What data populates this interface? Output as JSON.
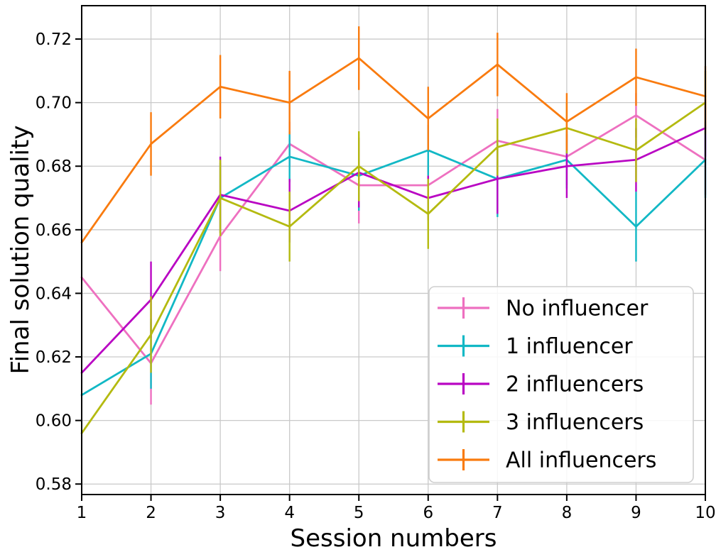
{
  "figure": {
    "xlabel": "Session numbers",
    "ylabel": "Final solution quality"
  },
  "chart_data": {
    "type": "line",
    "subtype": "errorbar",
    "title": "",
    "xlabel": "Session numbers",
    "ylabel": "Final solution quality",
    "x": [
      1,
      2,
      3,
      4,
      5,
      6,
      7,
      8,
      9,
      10
    ],
    "x_tick_labels": [
      "1",
      "2",
      "3",
      "4",
      "5",
      "6",
      "7",
      "8",
      "9",
      "10"
    ],
    "y_ticks": [
      0.58,
      0.6,
      0.62,
      0.64,
      0.66,
      0.68,
      0.7,
      0.72
    ],
    "y_tick_labels": [
      "0.58",
      "0.60",
      "0.62",
      "0.64",
      "0.66",
      "0.68",
      "0.70",
      "0.72"
    ],
    "xlim": [
      1,
      10
    ],
    "ylim": [
      0.5767,
      0.7305
    ],
    "grid": true,
    "grid_color": "#c9c9c9",
    "spine_color": "#000000",
    "legend_position": "lower right",
    "series": [
      {
        "name": "No influencer",
        "color": "#ee70c0",
        "values": [
          0.645,
          0.618,
          0.658,
          0.687,
          0.674,
          0.674,
          0.688,
          0.683,
          0.696,
          0.682
        ],
        "errors": [
          0,
          0.013,
          0.011,
          0.007,
          0.012,
          0.008,
          0.01,
          0.009,
          0.007,
          0.011
        ]
      },
      {
        "name": "1 influencer",
        "color": "#12b8c5",
        "values": [
          0.608,
          0.621,
          0.67,
          0.683,
          0.677,
          0.685,
          0.676,
          0.682,
          0.661,
          0.682
        ],
        "errors": [
          0,
          0.011,
          0.011,
          0.008,
          0.011,
          0.008,
          0.012,
          0.009,
          0.011,
          0.012
        ]
      },
      {
        "name": "2 influencers",
        "color": "#b906c3",
        "values": [
          0.615,
          0.638,
          0.671,
          0.666,
          0.678,
          0.67,
          0.676,
          0.68,
          0.682,
          0.692
        ],
        "errors": [
          0,
          0.012,
          0.012,
          0.01,
          0.011,
          0.007,
          0.011,
          0.01,
          0.01,
          0.009
        ]
      },
      {
        "name": "3 influencers",
        "color": "#b4ba10",
        "values": [
          0.596,
          0.627,
          0.67,
          0.661,
          0.68,
          0.665,
          0.686,
          0.692,
          0.685,
          0.7
        ],
        "errors": [
          0,
          0.012,
          0.012,
          0.011,
          0.011,
          0.011,
          0.009,
          0.008,
          0.01,
          0.01
        ]
      },
      {
        "name": "All influencers",
        "color": "#f97b0f",
        "values": [
          0.656,
          0.687,
          0.705,
          0.7,
          0.714,
          0.695,
          0.712,
          0.694,
          0.708,
          0.702
        ],
        "errors": [
          0,
          0.01,
          0.01,
          0.01,
          0.01,
          0.01,
          0.01,
          0.009,
          0.009,
          0.0095
        ]
      }
    ]
  }
}
